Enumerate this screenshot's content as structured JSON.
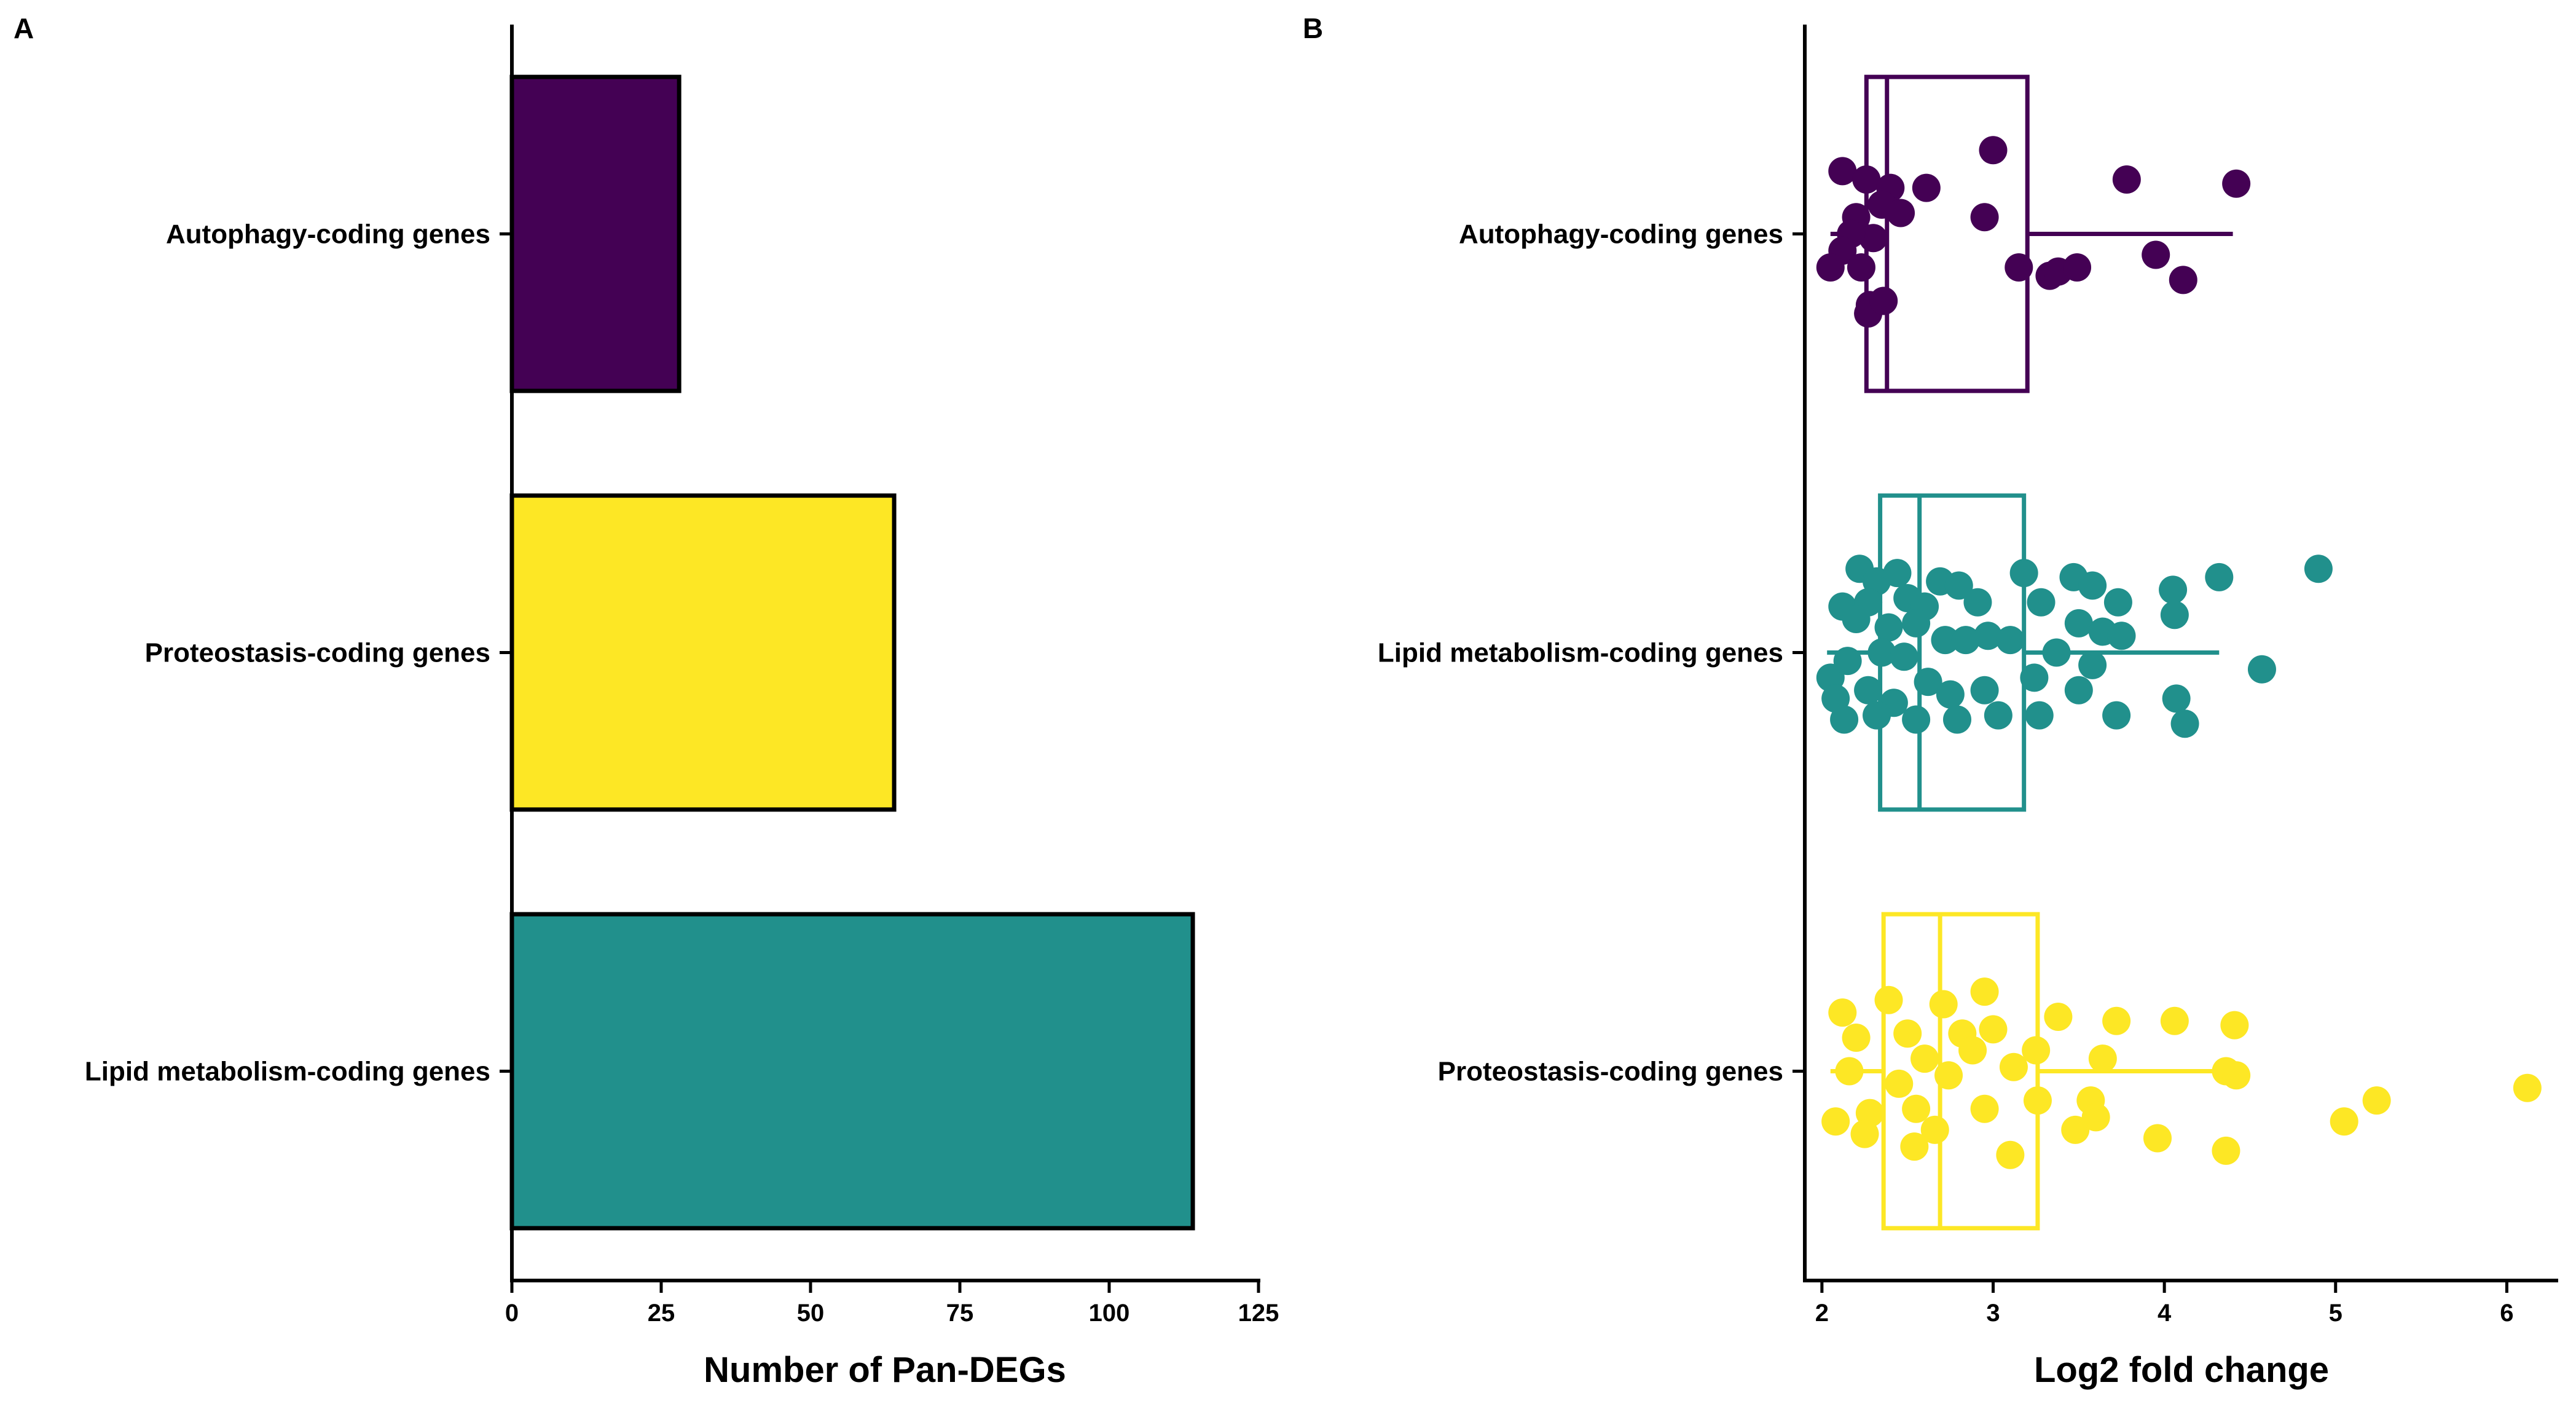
{
  "panels": {
    "a": {
      "tag": "A"
    },
    "b": {
      "tag": "B"
    }
  },
  "chart_data": [
    {
      "type": "bar",
      "orientation": "horizontal",
      "panel": "A",
      "categories": [
        "Autophagy-coding genes",
        "Proteostasis-coding genes",
        "Lipid metabolism-coding genes"
      ],
      "values": [
        28,
        64,
        114
      ],
      "colors": [
        "#440154",
        "#fde725",
        "#21908c"
      ],
      "xlabel": "Number of Pan-DEGs",
      "ylabel": "",
      "xlim": [
        0,
        125
      ],
      "xticks": [
        0,
        25,
        50,
        75,
        100,
        125
      ],
      "grid": false,
      "legend": "none"
    },
    {
      "type": "box",
      "orientation": "horizontal",
      "panel": "B",
      "categories": [
        "Autophagy-coding genes",
        "Lipid metabolism-coding genes",
        "Proteostasis-coding genes"
      ],
      "colors": [
        "#440154",
        "#21908c",
        "#fde725"
      ],
      "xlabel": "Log2 fold change",
      "ylabel": "",
      "xlim": [
        1.9,
        6.3
      ],
      "xticks": [
        2,
        3,
        4,
        5,
        6
      ],
      "grid": false,
      "legend": "none",
      "boxes": [
        {
          "q1": 2.26,
          "median": 2.38,
          "q3": 3.2,
          "whisker_low": 2.05,
          "whisker_high": 4.4
        },
        {
          "q1": 2.34,
          "median": 2.57,
          "q3": 3.18,
          "whisker_low": 2.03,
          "whisker_high": 4.32
        },
        {
          "q1": 2.36,
          "median": 2.69,
          "q3": 3.26,
          "whisker_low": 2.05,
          "whisker_high": 4.4
        }
      ],
      "points": [
        [
          {
            "x": 2.12,
            "y": 0.15
          },
          {
            "x": 2.26,
            "y": 0.13
          },
          {
            "x": 2.4,
            "y": 0.11
          },
          {
            "x": 2.61,
            "y": 0.11
          },
          {
            "x": 3.0,
            "y": 0.2
          },
          {
            "x": 3.78,
            "y": 0.13
          },
          {
            "x": 4.42,
            "y": 0.12
          },
          {
            "x": 2.35,
            "y": 0.07
          },
          {
            "x": 2.46,
            "y": 0.05
          },
          {
            "x": 2.2,
            "y": 0.04
          },
          {
            "x": 2.3,
            "y": -0.01
          },
          {
            "x": 2.17,
            "y": 0.0
          },
          {
            "x": 2.95,
            "y": 0.04
          },
          {
            "x": 2.12,
            "y": -0.04
          },
          {
            "x": 2.05,
            "y": -0.08
          },
          {
            "x": 2.23,
            "y": -0.08
          },
          {
            "x": 3.15,
            "y": -0.08
          },
          {
            "x": 3.33,
            "y": -0.1
          },
          {
            "x": 3.38,
            "y": -0.09
          },
          {
            "x": 3.49,
            "y": -0.08
          },
          {
            "x": 3.95,
            "y": -0.05
          },
          {
            "x": 4.11,
            "y": -0.11
          },
          {
            "x": 2.28,
            "y": -0.17
          },
          {
            "x": 2.27,
            "y": -0.19
          },
          {
            "x": 2.36,
            "y": -0.16
          }
        ],
        [
          {
            "x": 2.22,
            "y": 0.2
          },
          {
            "x": 2.32,
            "y": 0.17
          },
          {
            "x": 2.44,
            "y": 0.19
          },
          {
            "x": 2.69,
            "y": 0.17
          },
          {
            "x": 2.8,
            "y": 0.16
          },
          {
            "x": 3.18,
            "y": 0.19
          },
          {
            "x": 3.47,
            "y": 0.18
          },
          {
            "x": 3.58,
            "y": 0.16
          },
          {
            "x": 4.05,
            "y": 0.15
          },
          {
            "x": 4.32,
            "y": 0.18
          },
          {
            "x": 4.9,
            "y": 0.2
          },
          {
            "x": 2.12,
            "y": 0.11
          },
          {
            "x": 2.27,
            "y": 0.12
          },
          {
            "x": 2.5,
            "y": 0.13
          },
          {
            "x": 2.6,
            "y": 0.11
          },
          {
            "x": 2.91,
            "y": 0.12
          },
          {
            "x": 3.28,
            "y": 0.12
          },
          {
            "x": 3.73,
            "y": 0.12
          },
          {
            "x": 2.2,
            "y": 0.08
          },
          {
            "x": 2.39,
            "y": 0.06
          },
          {
            "x": 2.55,
            "y": 0.07
          },
          {
            "x": 3.5,
            "y": 0.07
          },
          {
            "x": 3.64,
            "y": 0.05
          },
          {
            "x": 3.75,
            "y": 0.04
          },
          {
            "x": 4.06,
            "y": 0.09
          },
          {
            "x": 2.05,
            "y": -0.06
          },
          {
            "x": 2.15,
            "y": -0.02
          },
          {
            "x": 2.35,
            "y": 0.0
          },
          {
            "x": 2.48,
            "y": -0.01
          },
          {
            "x": 2.72,
            "y": 0.03
          },
          {
            "x": 2.84,
            "y": 0.03
          },
          {
            "x": 2.97,
            "y": 0.04
          },
          {
            "x": 3.1,
            "y": 0.03
          },
          {
            "x": 3.37,
            "y": 0.0
          },
          {
            "x": 3.58,
            "y": -0.03
          },
          {
            "x": 4.57,
            "y": -0.04
          },
          {
            "x": 2.08,
            "y": -0.11
          },
          {
            "x": 2.27,
            "y": -0.09
          },
          {
            "x": 2.42,
            "y": -0.12
          },
          {
            "x": 2.62,
            "y": -0.07
          },
          {
            "x": 2.75,
            "y": -0.1
          },
          {
            "x": 2.95,
            "y": -0.09
          },
          {
            "x": 3.24,
            "y": -0.06
          },
          {
            "x": 3.5,
            "y": -0.09
          },
          {
            "x": 4.07,
            "y": -0.11
          },
          {
            "x": 2.13,
            "y": -0.16
          },
          {
            "x": 2.32,
            "y": -0.15
          },
          {
            "x": 2.55,
            "y": -0.16
          },
          {
            "x": 2.79,
            "y": -0.16
          },
          {
            "x": 3.03,
            "y": -0.15
          },
          {
            "x": 3.27,
            "y": -0.15
          },
          {
            "x": 3.72,
            "y": -0.15
          },
          {
            "x": 4.12,
            "y": -0.17
          }
        ],
        [
          {
            "x": 2.12,
            "y": 0.14
          },
          {
            "x": 2.39,
            "y": 0.17
          },
          {
            "x": 2.71,
            "y": 0.16
          },
          {
            "x": 2.95,
            "y": 0.19
          },
          {
            "x": 3.38,
            "y": 0.13
          },
          {
            "x": 3.72,
            "y": 0.12
          },
          {
            "x": 4.06,
            "y": 0.12
          },
          {
            "x": 4.41,
            "y": 0.11
          },
          {
            "x": 2.2,
            "y": 0.08
          },
          {
            "x": 2.5,
            "y": 0.09
          },
          {
            "x": 2.82,
            "y": 0.09
          },
          {
            "x": 3.0,
            "y": 0.1
          },
          {
            "x": 2.16,
            "y": 0.0
          },
          {
            "x": 2.6,
            "y": 0.03
          },
          {
            "x": 2.88,
            "y": 0.05
          },
          {
            "x": 3.25,
            "y": 0.05
          },
          {
            "x": 3.64,
            "y": 0.03
          },
          {
            "x": 4.36,
            "y": 0.0
          },
          {
            "x": 2.45,
            "y": -0.03
          },
          {
            "x": 2.74,
            "y": -0.01
          },
          {
            "x": 3.12,
            "y": 0.01
          },
          {
            "x": 4.42,
            "y": -0.01
          },
          {
            "x": 6.12,
            "y": -0.04
          },
          {
            "x": 2.08,
            "y": -0.12
          },
          {
            "x": 2.28,
            "y": -0.1
          },
          {
            "x": 2.55,
            "y": -0.09
          },
          {
            "x": 2.95,
            "y": -0.09
          },
          {
            "x": 3.26,
            "y": -0.07
          },
          {
            "x": 3.57,
            "y": -0.07
          },
          {
            "x": 3.6,
            "y": -0.11
          },
          {
            "x": 5.05,
            "y": -0.12
          },
          {
            "x": 5.24,
            "y": -0.07
          },
          {
            "x": 2.25,
            "y": -0.15
          },
          {
            "x": 2.54,
            "y": -0.18
          },
          {
            "x": 2.66,
            "y": -0.14
          },
          {
            "x": 3.1,
            "y": -0.2
          },
          {
            "x": 3.48,
            "y": -0.14
          },
          {
            "x": 3.96,
            "y": -0.16
          },
          {
            "x": 4.36,
            "y": -0.19
          }
        ]
      ]
    }
  ]
}
